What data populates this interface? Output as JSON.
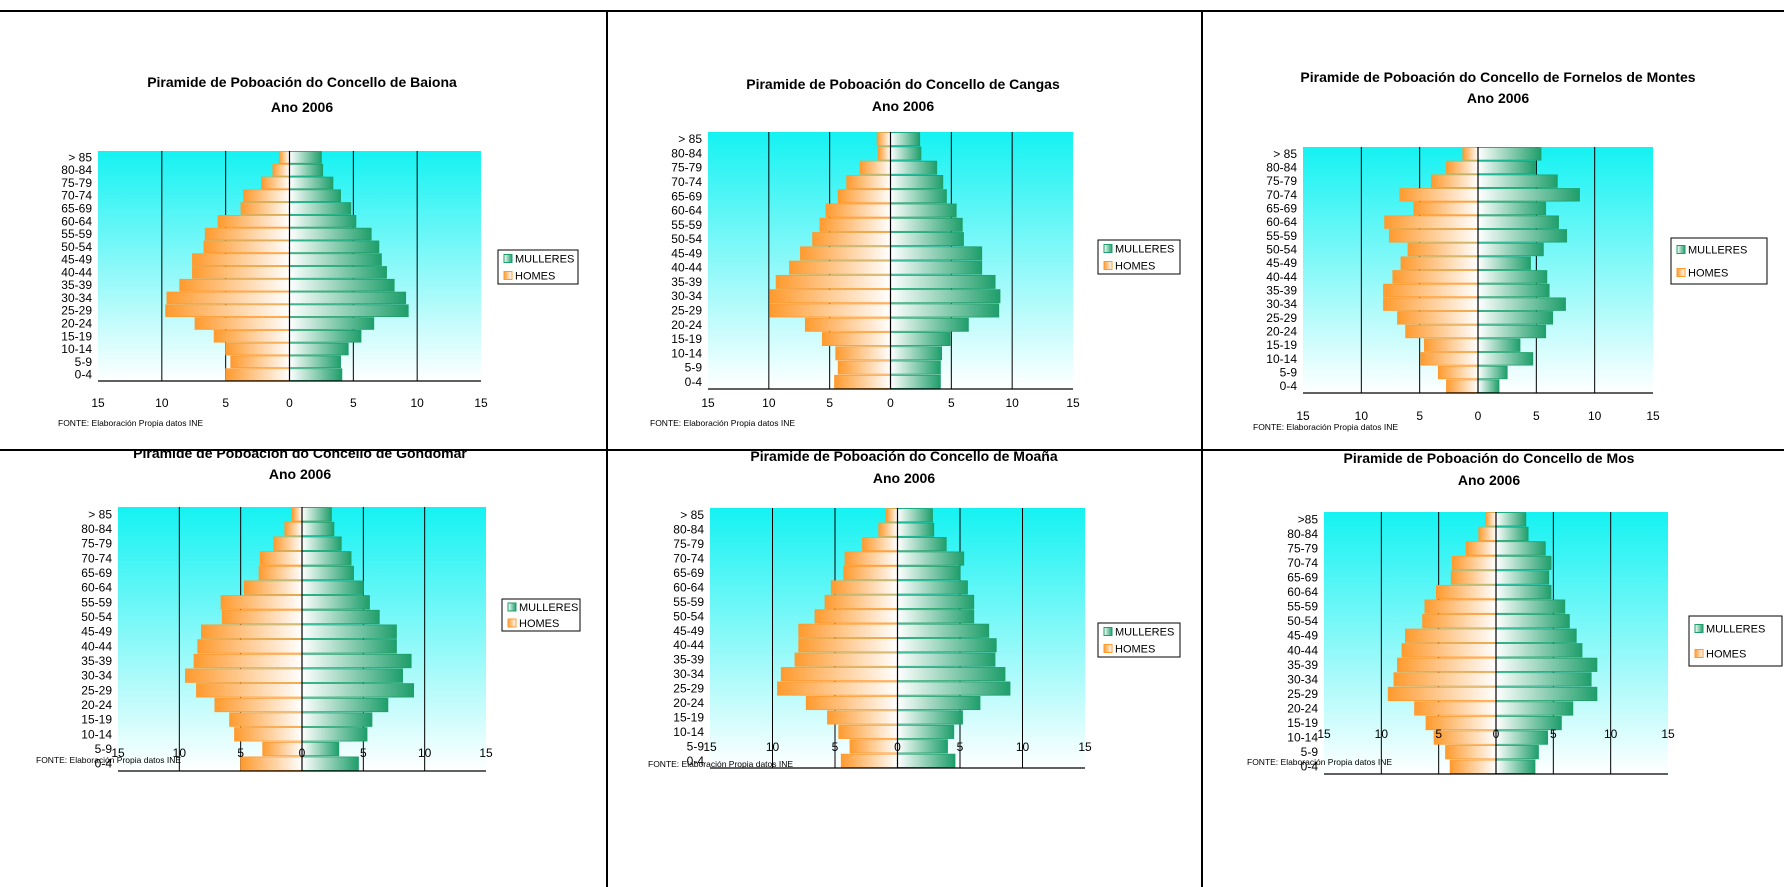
{
  "colors": {
    "mulleres_fill": "#1e9e6a",
    "homes_fill": "#ff9a2e",
    "plot_top": "#15f2f2",
    "plot_bottom": "#ffffff",
    "grid": "#000000"
  },
  "chart_data": [
    {
      "type": "bar",
      "orientation": "horizontal-pyramid",
      "title": "Piramide de Poboación do Concello de Baiona",
      "subtitle": "Ano 2006",
      "categories": [
        "0-4",
        "5-9",
        "10-14",
        "15-19",
        "20-24",
        "25-29",
        "30-34",
        "35-39",
        "40-44",
        "45-49",
        "50-54",
        "55-59",
        "60-64",
        "65-69",
        "70-74",
        "75-79",
        "80-84",
        "> 85"
      ],
      "series": [
        {
          "name": "MULLERES",
          "values": [
            4.1,
            4.0,
            4.6,
            5.6,
            6.6,
            9.3,
            9.1,
            8.2,
            7.6,
            7.2,
            7.0,
            6.4,
            5.2,
            4.8,
            4.0,
            3.4,
            2.6,
            2.5
          ]
        },
        {
          "name": "HOMES",
          "values": [
            5.0,
            4.6,
            5.0,
            5.9,
            7.4,
            9.7,
            9.6,
            8.6,
            7.6,
            7.6,
            6.7,
            6.6,
            5.6,
            3.8,
            3.6,
            2.2,
            1.3,
            0.8
          ]
        }
      ],
      "xticks": [
        "15",
        "10",
        "5",
        "0",
        "5",
        "10",
        "15"
      ],
      "xlim": [
        -15,
        15
      ],
      "legend": [
        "MULLERES",
        "HOMES"
      ],
      "legend_position": "right",
      "source": "FONTE: Elaboración Propia datos INE"
    },
    {
      "type": "bar",
      "orientation": "horizontal-pyramid",
      "title": "Piramide de Poboación do Concello de Cangas",
      "subtitle": "Ano 2006",
      "categories": [
        "0-4",
        "5-9",
        "10-14",
        "15-19",
        "20-24",
        "25-29",
        "30-34",
        "35-39",
        "40-44",
        "45-49",
        "50-54",
        "55-59",
        "60-64",
        "65-69",
        "70-74",
        "75-79",
        "80-84",
        "> 85"
      ],
      "series": [
        {
          "name": "MULLERES",
          "values": [
            4.1,
            4.1,
            4.2,
            4.9,
            6.4,
            8.9,
            9.0,
            8.6,
            7.5,
            7.5,
            6.0,
            5.9,
            5.4,
            4.6,
            4.3,
            3.8,
            2.5,
            2.4
          ]
        },
        {
          "name": "HOMES",
          "values": [
            4.6,
            4.3,
            4.5,
            5.6,
            7.0,
            9.9,
            9.9,
            9.4,
            8.3,
            7.4,
            6.4,
            5.8,
            5.3,
            4.3,
            3.6,
            2.5,
            1.0,
            1.1
          ]
        }
      ],
      "xticks": [
        "15",
        "10",
        "5",
        "0",
        "5",
        "10",
        "15"
      ],
      "xlim": [
        -15,
        15
      ],
      "legend": [
        "MULLERES",
        "HOMES"
      ],
      "legend_position": "right",
      "source": "FONTE: Elaboración Propia datos INE"
    },
    {
      "type": "bar",
      "orientation": "horizontal-pyramid",
      "title": "Piramide de Poboación do Concello de Fornelos de Montes",
      "subtitle": "Ano 2006",
      "categories": [
        "0-4",
        "5-9",
        "10-14",
        "15-19",
        "20-24",
        "25-29",
        "30-34",
        "35-39",
        "40-44",
        "45-49",
        "50-54",
        "55-59",
        "60-64",
        "65-69",
        "70-74",
        "75-79",
        "80-84",
        "> 85"
      ],
      "series": [
        {
          "name": "MULLERES",
          "values": [
            1.8,
            2.5,
            4.7,
            3.6,
            5.8,
            6.4,
            7.5,
            6.1,
            5.9,
            4.5,
            5.6,
            7.6,
            6.9,
            5.8,
            8.7,
            6.8,
            4.9,
            5.4
          ]
        },
        {
          "name": "HOMES",
          "values": [
            2.7,
            3.4,
            4.9,
            4.6,
            6.2,
            6.9,
            8.1,
            8.1,
            7.3,
            6.6,
            6.0,
            7.6,
            8.0,
            5.5,
            6.7,
            4.0,
            2.7,
            1.3
          ]
        }
      ],
      "xticks": [
        "15",
        "10",
        "5",
        "0",
        "5",
        "10",
        "15"
      ],
      "xlim": [
        -15,
        15
      ],
      "legend": [
        "MULLERES",
        "HOMES"
      ],
      "legend_position": "right",
      "source": "FONTE: Elaboración Propia datos INE"
    },
    {
      "type": "bar",
      "orientation": "horizontal-pyramid",
      "title": "Piramide de Poboación do Concello de Gondomar",
      "subtitle": "Ano 2006",
      "categories": [
        "0-4",
        "5-9",
        "10-14",
        "15-19",
        "20-24",
        "25-29",
        "30-34",
        "35-39",
        "40-44",
        "45-49",
        "50-54",
        "55-59",
        "60-64",
        "65-69",
        "70-74",
        "75-79",
        "80-84",
        "> 85"
      ],
      "series": [
        {
          "name": "MULLERES",
          "values": [
            4.6,
            3.0,
            5.3,
            5.7,
            7.0,
            9.1,
            8.2,
            8.9,
            7.7,
            7.7,
            6.3,
            5.5,
            5.0,
            4.2,
            4.0,
            3.2,
            2.6,
            2.4
          ]
        },
        {
          "name": "HOMES",
          "values": [
            5.0,
            3.2,
            5.5,
            5.9,
            7.1,
            8.6,
            9.5,
            8.8,
            8.5,
            8.2,
            6.5,
            6.6,
            4.7,
            3.5,
            3.4,
            2.3,
            1.4,
            0.8
          ]
        }
      ],
      "xticks": [
        "15",
        "10",
        "5",
        "0",
        "5",
        "10",
        "15"
      ],
      "xlim": [
        -15,
        15
      ],
      "legend": [
        "MULLERES",
        "HOMES"
      ],
      "legend_position": "right",
      "source": "FONTE: Elaboración Propia datos INE"
    },
    {
      "type": "bar",
      "orientation": "horizontal-pyramid",
      "title": "Piramide de Poboación do Concello de Moaña",
      "subtitle": "Ano 2006",
      "categories": [
        "0-4",
        "5-9",
        "10-14",
        "15-19",
        "20-24",
        "25-29",
        "30-34",
        "35-39",
        "40-44",
        "45-49",
        "50-54",
        "55-59",
        "60-64",
        "65-69",
        "70-74",
        "75-79",
        "80-84",
        "> 85"
      ],
      "series": [
        {
          "name": "MULLERES",
          "values": [
            4.6,
            4.0,
            4.5,
            5.2,
            6.6,
            9.0,
            8.6,
            7.8,
            7.9,
            7.3,
            6.1,
            6.1,
            5.6,
            5.0,
            5.3,
            3.9,
            2.9,
            2.8
          ]
        },
        {
          "name": "HOMES",
          "values": [
            4.5,
            3.8,
            4.7,
            5.6,
            7.3,
            9.6,
            9.3,
            8.2,
            7.9,
            7.9,
            6.6,
            5.8,
            5.3,
            4.3,
            4.2,
            2.8,
            1.5,
            0.9
          ]
        }
      ],
      "xticks": [
        "15",
        "10",
        "5",
        "0",
        "5",
        "10",
        "15"
      ],
      "xlim": [
        -15,
        15
      ],
      "legend": [
        "MULLERES",
        "HOMES"
      ],
      "legend_position": "right",
      "source": "FONTE: Elaboración Propia datos INE"
    },
    {
      "type": "bar",
      "orientation": "horizontal-pyramid",
      "title": "Piramide de Poboación do Concello de Mos",
      "subtitle": "Ano 2006",
      "categories": [
        "0-4",
        "5-9",
        "10-14",
        "15-19",
        "20-24",
        "25-29",
        "30-34",
        "35-39",
        "40-44",
        "45-49",
        "50-54",
        "55-59",
        "60-64",
        "65-69",
        "70-74",
        "75-79",
        "80-84",
        ">85"
      ],
      "series": [
        {
          "name": "MULLERES",
          "values": [
            3.4,
            3.7,
            4.5,
            5.7,
            6.7,
            8.8,
            8.3,
            8.8,
            7.5,
            7.0,
            6.4,
            6.0,
            4.8,
            4.6,
            4.8,
            4.3,
            2.8,
            2.6
          ]
        },
        {
          "name": "HOMES",
          "values": [
            4.0,
            4.4,
            5.4,
            6.1,
            7.1,
            9.4,
            8.9,
            8.6,
            8.2,
            7.9,
            6.4,
            6.2,
            5.2,
            3.9,
            3.8,
            2.6,
            1.5,
            0.9
          ]
        }
      ],
      "xticks": [
        "15",
        "10",
        "5",
        "0",
        "5",
        "10",
        "15"
      ],
      "xlim": [
        -15,
        15
      ],
      "legend": [
        "MULLERES",
        "HOMES"
      ],
      "legend_position": "right",
      "source": "FONTE: Elaboración Propia datos INE"
    }
  ]
}
